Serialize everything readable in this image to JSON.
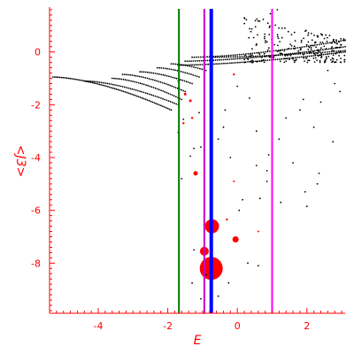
{
  "chart_data": {
    "type": "scatter",
    "title": "",
    "xlabel": "E",
    "ylabel": "<J3>",
    "xlim": [
      -5.4,
      3.1
    ],
    "ylim": [
      -9.9,
      1.7
    ],
    "x_ticks": [
      -4,
      -2,
      0,
      2
    ],
    "y_ticks": [
      0,
      -2,
      -4,
      -6,
      -8
    ],
    "x_tick_labels": [
      "-4",
      "-2",
      "0",
      "2"
    ],
    "y_tick_labels": [
      "0",
      "-2",
      "-4",
      "-6",
      "-8"
    ],
    "axis_color": "#ff0000",
    "grid": false,
    "vertical_lines": [
      {
        "x": -1.68,
        "color": "#007700",
        "width": 2
      },
      {
        "x": -0.95,
        "color": "#cc00cc",
        "width": 2
      },
      {
        "x": -0.75,
        "color": "#0000ff",
        "width": 4
      },
      {
        "x": 1.0,
        "color": "#ff00ff",
        "width": 2
      }
    ],
    "red_markers": {
      "color": "#ff0000",
      "points": [
        {
          "x": -0.75,
          "y": -8.2,
          "size": 13
        },
        {
          "x": -0.95,
          "y": -7.55,
          "size": 5
        },
        {
          "x": -0.73,
          "y": -6.6,
          "size": 8
        },
        {
          "x": -0.05,
          "y": -7.1,
          "size": 3.5
        },
        {
          "x": -1.2,
          "y": -4.6,
          "size": 2.5
        },
        {
          "x": -1.5,
          "y": -1.6,
          "size": 1.5
        },
        {
          "x": -1.35,
          "y": -1.85,
          "size": 1.5
        },
        {
          "x": -1.3,
          "y": -2.5,
          "size": 1.2
        },
        {
          "x": -1.55,
          "y": -2.7,
          "size": 1.2
        },
        {
          "x": -0.3,
          "y": -6.35,
          "size": 1.2
        },
        {
          "x": -0.1,
          "y": -4.9,
          "size": 1
        },
        {
          "x": 0.6,
          "y": -6.8,
          "size": 1
        },
        {
          "x": -0.1,
          "y": -0.85,
          "size": 1.2
        }
      ]
    },
    "black_points": {
      "color": "#000000",
      "curves": [
        {
          "x_from": -5.3,
          "x_to": -1.9,
          "y_left": -0.95,
          "y_right": -2.2,
          "n": 70
        },
        {
          "x_from": -4.4,
          "x_to": -1.7,
          "y_left": -1.1,
          "y_right": -2.0,
          "n": 50
        },
        {
          "x_from": -3.6,
          "x_to": -1.6,
          "y_left": -1.0,
          "y_right": -1.8,
          "n": 38
        },
        {
          "x_from": -3.3,
          "x_to": -1.5,
          "y_left": -0.85,
          "y_right": -1.5,
          "n": 34
        },
        {
          "x_from": -2.8,
          "x_to": -1.3,
          "y_left": -0.75,
          "y_right": -1.2,
          "n": 28
        },
        {
          "x_from": -2.3,
          "x_to": -1.1,
          "y_left": -0.6,
          "y_right": -0.95,
          "n": 22
        },
        {
          "x_from": -1.9,
          "x_to": -0.9,
          "y_left": -0.45,
          "y_right": -0.7,
          "n": 18
        },
        {
          "x_from": -1.7,
          "x_to": 3.1,
          "y_left": -0.5,
          "y_right": 0.0,
          "n": 85
        },
        {
          "x_from": -1.5,
          "x_to": 3.1,
          "y_left": -0.35,
          "y_right": 0.2,
          "n": 80
        },
        {
          "x_from": -1.3,
          "x_to": 3.1,
          "y_left": -0.2,
          "y_right": 0.45,
          "n": 72
        },
        {
          "x_from": -0.7,
          "x_to": 3.1,
          "y_left": -0.2,
          "y_right": 0.05,
          "n": 60
        }
      ],
      "cloud": {
        "x_from": 0.2,
        "x_to": 3.1,
        "y_from": -0.4,
        "y_to": 1.5,
        "n": 230
      },
      "scattered": [
        [
          1.15,
          1.6
        ],
        [
          0.95,
          1.45
        ],
        [
          2.95,
          -1.5
        ],
        [
          -1.6,
          -4.8
        ],
        [
          -1.35,
          -3.95
        ],
        [
          -1.7,
          -3.05
        ],
        [
          -1.55,
          -2.55
        ],
        [
          -1.25,
          -3.65
        ],
        [
          -0.55,
          -3.3
        ],
        [
          0.55,
          -4.3
        ],
        [
          0.85,
          -4.5
        ],
        [
          0.15,
          -5.6
        ],
        [
          0.65,
          -5.55
        ],
        [
          1.25,
          -5.7
        ],
        [
          1.95,
          -5.3
        ],
        [
          2.3,
          -5.0
        ],
        [
          2.0,
          -5.85
        ],
        [
          -1.05,
          -3.6
        ],
        [
          -1.25,
          -7.5
        ],
        [
          -1.3,
          -8.75
        ],
        [
          -0.9,
          -8.45
        ],
        [
          -0.25,
          -8.75
        ],
        [
          -1.05,
          -9.35
        ],
        [
          0.3,
          -8.0
        ],
        [
          0.85,
          -4.9
        ],
        [
          2.2,
          -2.85
        ],
        [
          2.75,
          -3.4
        ],
        [
          0.55,
          -3.0
        ],
        [
          0.9,
          -3.9
        ],
        [
          1.4,
          -2.5
        ],
        [
          2.6,
          -0.7
        ],
        [
          -0.4,
          -2.85
        ],
        [
          1.8,
          -2.2
        ],
        [
          -1.7,
          -1.1
        ],
        [
          0.0,
          -1.3
        ],
        [
          -0.95,
          -1.4
        ],
        [
          -1.1,
          -2.3
        ],
        [
          -0.2,
          -4.0
        ],
        [
          1.6,
          -4.2
        ],
        [
          2.4,
          -1.9
        ],
        [
          0.6,
          -8.1
        ],
        [
          -0.55,
          -9.25
        ],
        [
          -0.95,
          -9.9
        ],
        [
          0.05,
          -6.0
        ],
        [
          1.9,
          -1.8
        ],
        [
          2.8,
          -1.2
        ],
        [
          0.35,
          -1.75
        ],
        [
          1.2,
          -3.3
        ],
        [
          -0.35,
          -2.2
        ],
        [
          2.35,
          -4.6
        ]
      ]
    }
  }
}
